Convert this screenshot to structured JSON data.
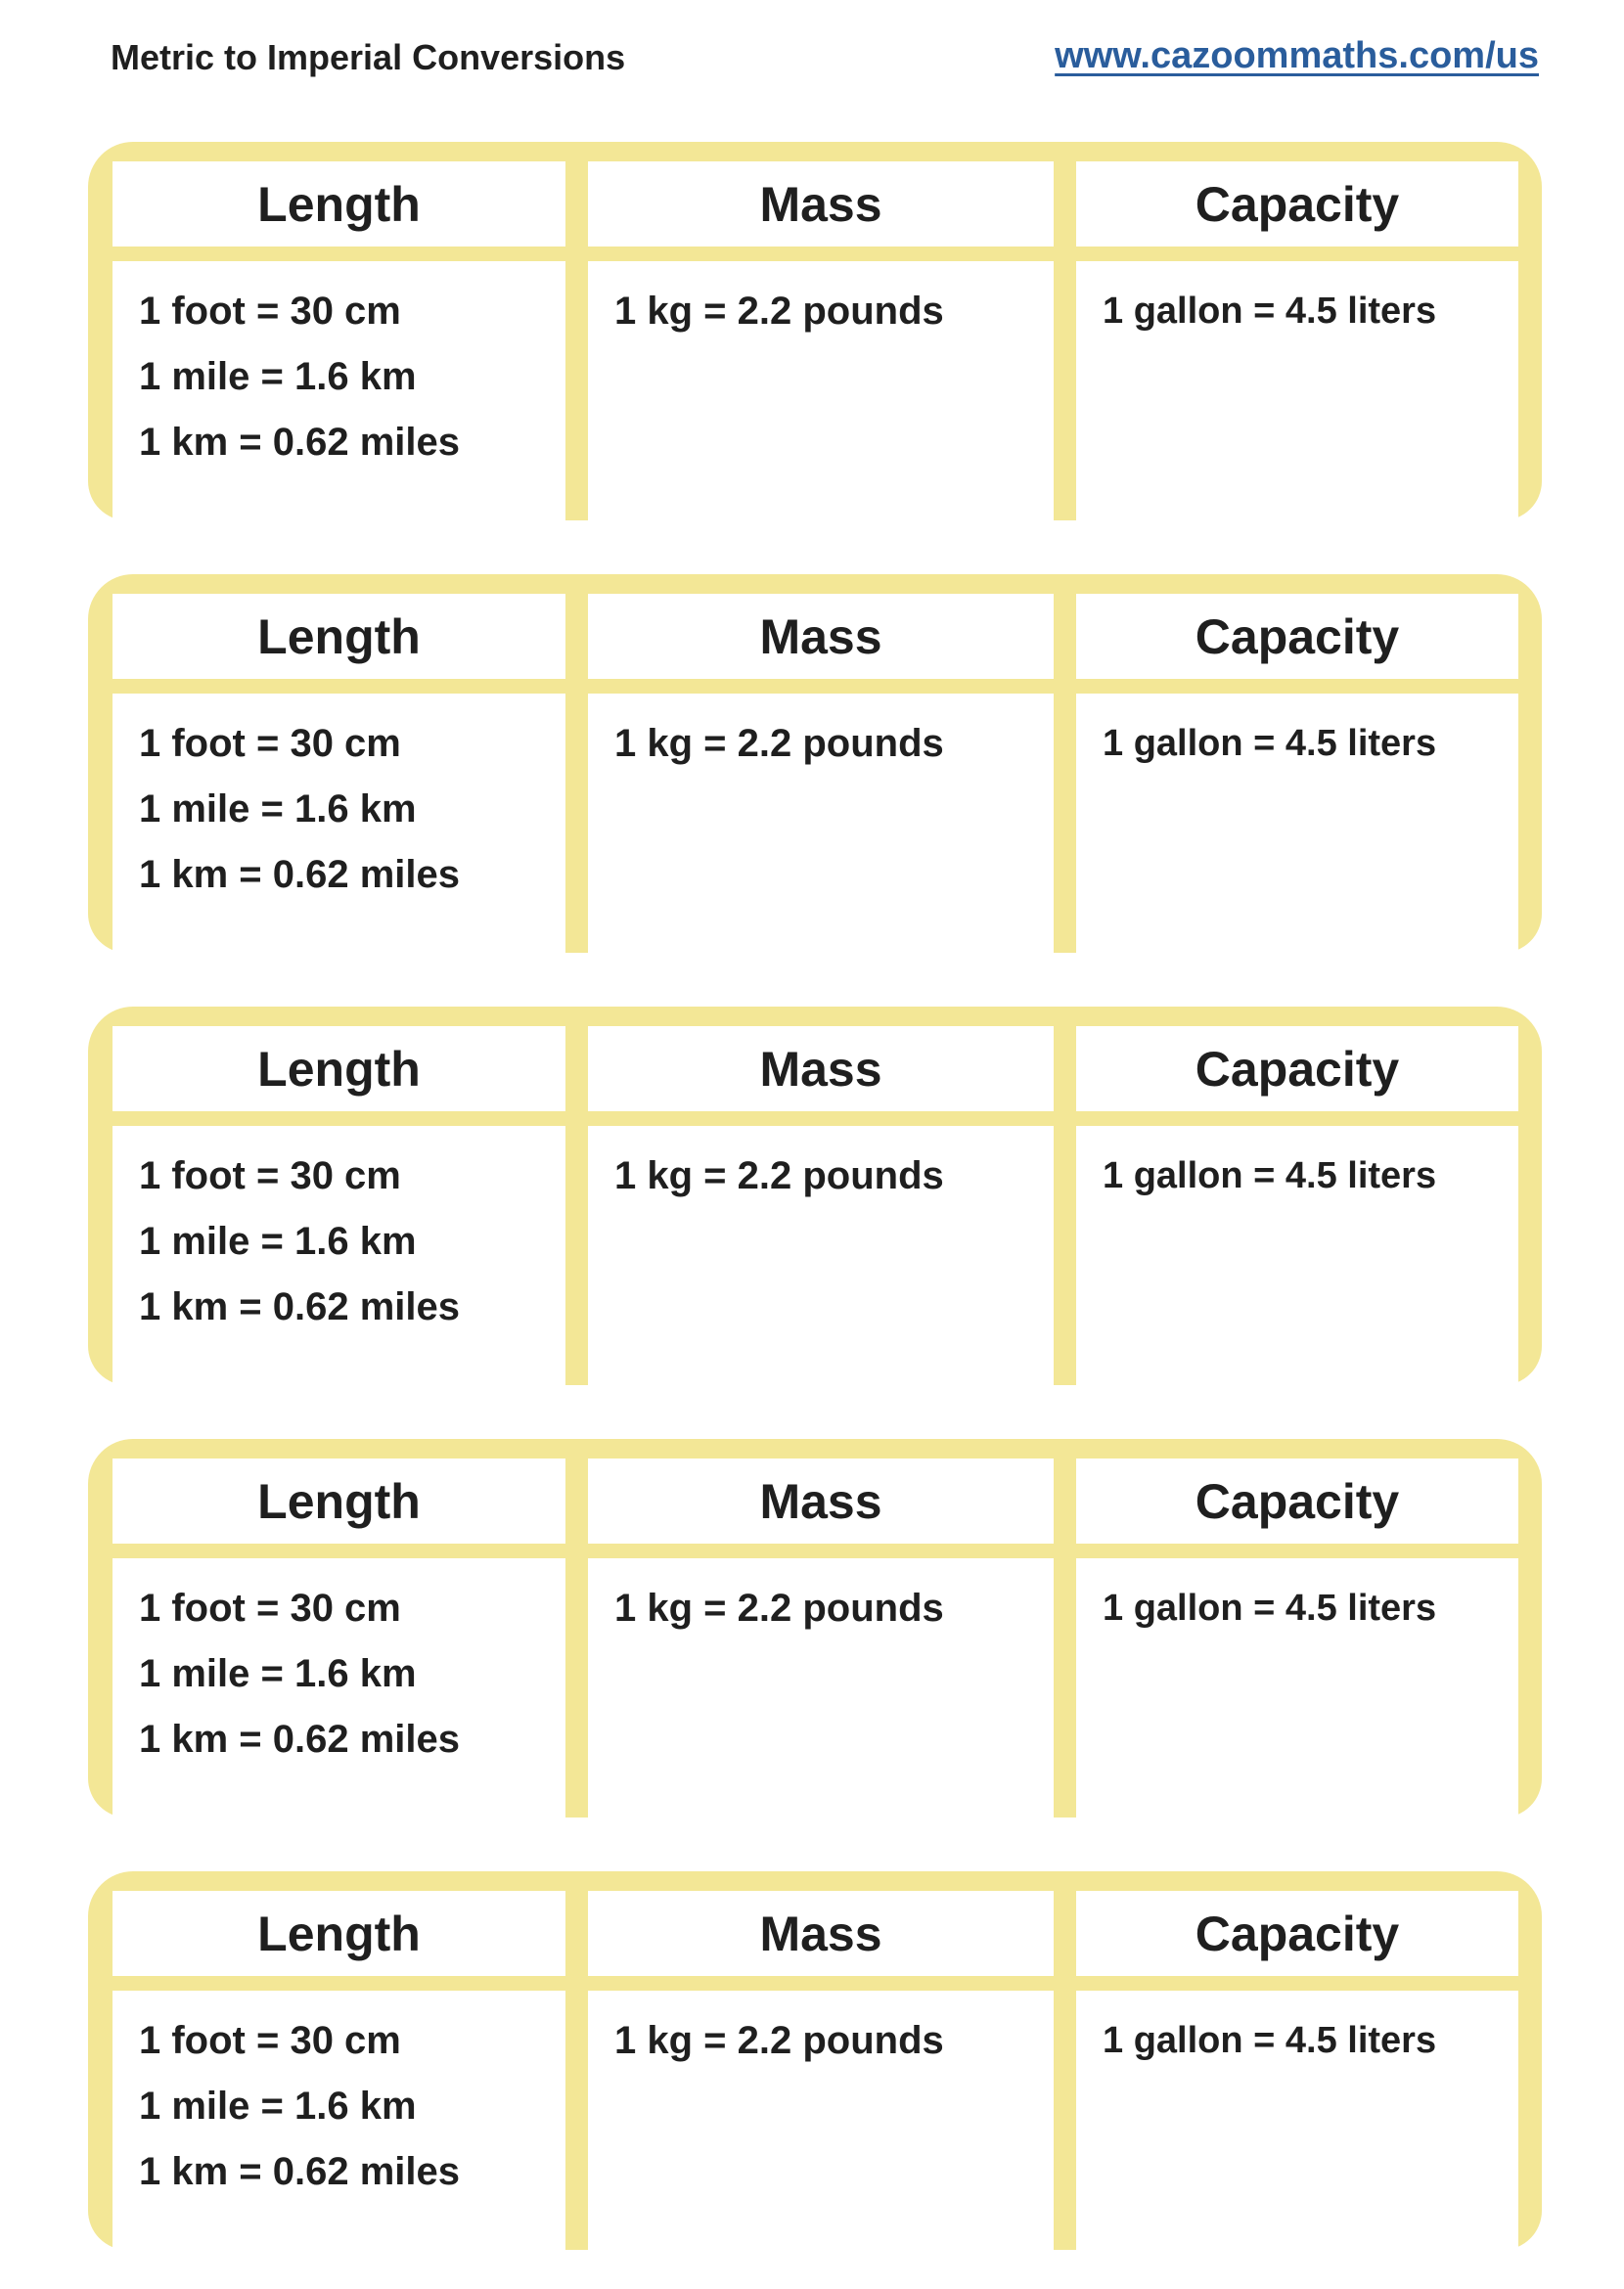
{
  "header": {
    "title": "Metric to Imperial Conversions",
    "url": "www.cazoommaths.com/us"
  },
  "colors": {
    "card_yellow": "#f3e796",
    "link_blue": "#2a5d9c"
  },
  "cards": [
    {
      "headers": [
        "Length",
        "Mass",
        "Capacity"
      ],
      "length": [
        "1 foot = 30 cm",
        "1 mile = 1.6 km",
        "1 km = 0.62 miles"
      ],
      "mass": [
        "1 kg = 2.2 pounds"
      ],
      "capacity": [
        "1 gallon = 4.5 liters"
      ]
    },
    {
      "headers": [
        "Length",
        "Mass",
        "Capacity"
      ],
      "length": [
        "1 foot = 30 cm",
        "1 mile = 1.6 km",
        "1 km = 0.62 miles"
      ],
      "mass": [
        "1 kg = 2.2 pounds"
      ],
      "capacity": [
        "1 gallon = 4.5 liters"
      ]
    },
    {
      "headers": [
        "Length",
        "Mass",
        "Capacity"
      ],
      "length": [
        "1 foot = 30 cm",
        "1 mile = 1.6 km",
        "1 km = 0.62 miles"
      ],
      "mass": [
        "1 kg = 2.2 pounds"
      ],
      "capacity": [
        "1 gallon = 4.5 liters"
      ]
    },
    {
      "headers": [
        "Length",
        "Mass",
        "Capacity"
      ],
      "length": [
        "1 foot = 30 cm",
        "1 mile = 1.6 km",
        "1 km = 0.62 miles"
      ],
      "mass": [
        "1 kg = 2.2 pounds"
      ],
      "capacity": [
        "1 gallon = 4.5 liters"
      ]
    },
    {
      "headers": [
        "Length",
        "Mass",
        "Capacity"
      ],
      "length": [
        "1 foot = 30 cm",
        "1 mile = 1.6 km",
        "1 km = 0.62 miles"
      ],
      "mass": [
        "1 kg = 2.2 pounds"
      ],
      "capacity": [
        "1 gallon = 4.5 liters"
      ]
    }
  ]
}
